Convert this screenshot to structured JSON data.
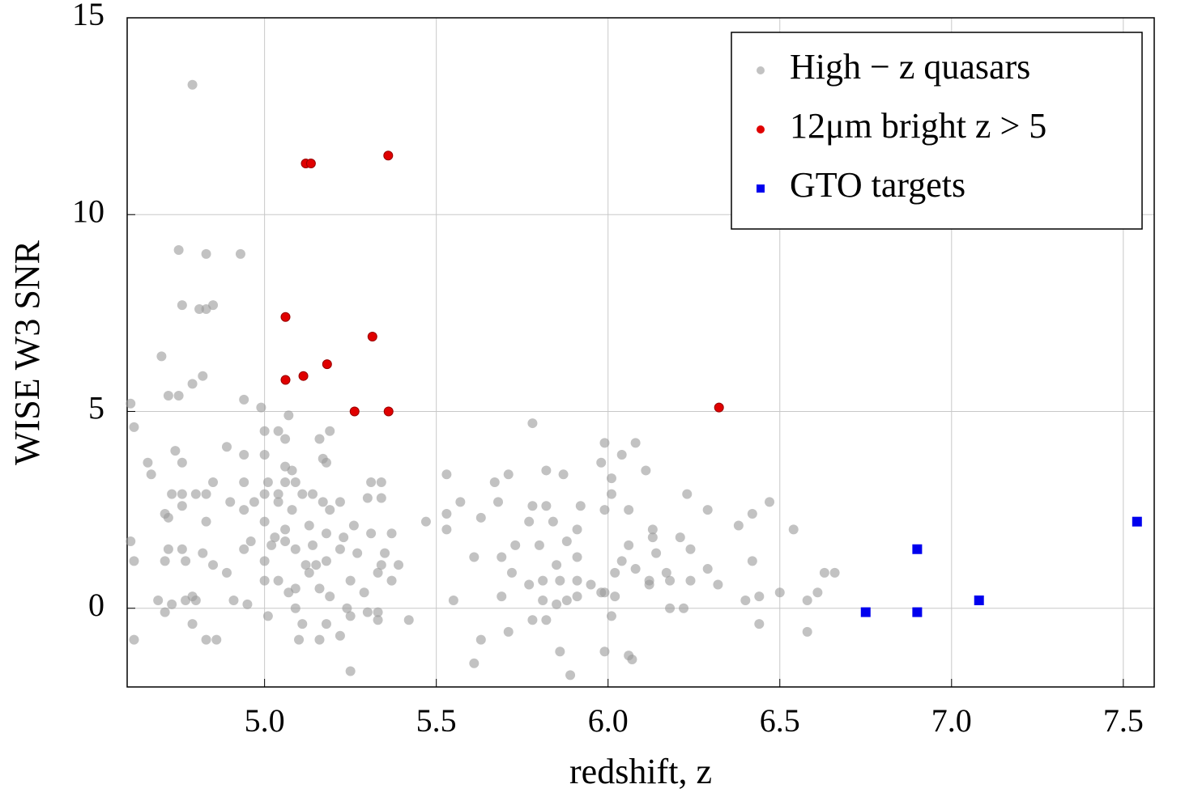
{
  "chart_data": {
    "type": "scatter",
    "xlabel": "redshift,   z",
    "ylabel": "WISE   W3   SNR",
    "xlim": [
      4.6,
      7.59
    ],
    "ylim": [
      -2,
      15
    ],
    "xticks": [
      {
        "value": 5,
        "label": "5.0"
      },
      {
        "value": 5.5,
        "label": "5.5"
      },
      {
        "value": 6,
        "label": "6.0"
      },
      {
        "value": 6.5,
        "label": "6.5"
      },
      {
        "value": 7,
        "label": "7.0"
      },
      {
        "value": 7.5,
        "label": "7.5"
      }
    ],
    "yticks": [
      0,
      5,
      10,
      15
    ],
    "grid": true,
    "legend": "upper right",
    "series": [
      {
        "name": "High − z quasars",
        "color": "#999999",
        "marker": "circle",
        "x": [
          4.79,
          4.75,
          4.83,
          4.93,
          4.76,
          4.85,
          4.81,
          4.83,
          4.7,
          4.82,
          4.79,
          4.72,
          4.75,
          4.94,
          4.61,
          4.99,
          4.62,
          5.07,
          5.0,
          5.04,
          5.19,
          5.16,
          5.06,
          4.89,
          4.74,
          4.94,
          5.0,
          4.76,
          4.66,
          5.17,
          5.18,
          5.06,
          5.08,
          4.67,
          4.85,
          4.94,
          5.01,
          5.06,
          5.09,
          5.31,
          5.34,
          4.73,
          4.76,
          4.8,
          4.83,
          5.0,
          5.04,
          5.11,
          5.14,
          4.9,
          4.97,
          5.04,
          5.17,
          5.22,
          5.3,
          5.34,
          4.76,
          4.94,
          5.08,
          5.19,
          4.71,
          4.72,
          5.0,
          4.83,
          5.13,
          5.26,
          5.06,
          5.18,
          5.31,
          5.37,
          5.23,
          4.61,
          4.96,
          5.03,
          5.06,
          5.14,
          5.02,
          5.09,
          4.72,
          4.76,
          4.94,
          5.22,
          5.27,
          4.82,
          5.35,
          4.62,
          4.71,
          4.77,
          5.0,
          5.18,
          4.85,
          5.12,
          5.15,
          5.39,
          5.34,
          4.89,
          5.13,
          5.33,
          5.0,
          5.04,
          5.25,
          5.37,
          5.09,
          5.16,
          5.07,
          5.29,
          4.79,
          5.19,
          4.69,
          4.77,
          4.91,
          4.8,
          4.95,
          4.73,
          5.09,
          5.24,
          4.71,
          5.33,
          5.01,
          5.25,
          5.3,
          4.79,
          5.11,
          5.18,
          5.33,
          5.42,
          5.22,
          4.62,
          4.83,
          4.86,
          5.1,
          5.16,
          5.25,
          5.53,
          5.71,
          5.82,
          5.87,
          5.67,
          5.57,
          5.53,
          5.63,
          5.68,
          5.78,
          5.82,
          5.92,
          5.77,
          5.84,
          5.91,
          5.53,
          5.47,
          5.61,
          5.69,
          5.73,
          5.8,
          5.88,
          5.91,
          5.85,
          5.72,
          5.69,
          5.77,
          5.81,
          5.86,
          5.91,
          5.95,
          5.98,
          5.81,
          5.85,
          5.88,
          5.91,
          6.01,
          5.78,
          5.82,
          5.55,
          5.71,
          5.63,
          5.86,
          5.61,
          5.89,
          5.99,
          6.06,
          6.07,
          5.78,
          5.99,
          6.08,
          6.04,
          5.98,
          6.11,
          6.01,
          6.01,
          5.99,
          6.06,
          6.13,
          6.13,
          6.06,
          6.14,
          6.04,
          6.02,
          6.08,
          6.12,
          6.17,
          6.18,
          5.99,
          6.02,
          6.12,
          6.18,
          6.22,
          6.23,
          6.21,
          6.24,
          6.29,
          6.29,
          6.32,
          6.24,
          6.38,
          6.42,
          6.47,
          6.42,
          6.54,
          6.44,
          6.4,
          6.5,
          6.44,
          6.61,
          6.63,
          6.66,
          6.58,
          6.58
        ],
        "values": [
          13.3,
          9.1,
          9.0,
          9.0,
          7.7,
          7.7,
          7.6,
          7.6,
          6.4,
          5.9,
          5.7,
          5.4,
          5.4,
          5.3,
          5.2,
          5.1,
          4.6,
          4.9,
          4.5,
          4.5,
          4.5,
          4.3,
          4.3,
          4.1,
          4.0,
          3.9,
          3.9,
          3.7,
          3.7,
          3.8,
          3.7,
          3.6,
          3.5,
          3.4,
          3.2,
          3.2,
          3.2,
          3.2,
          3.2,
          3.2,
          3.2,
          2.9,
          2.9,
          2.9,
          2.9,
          2.9,
          2.9,
          2.9,
          2.9,
          2.7,
          2.7,
          2.7,
          2.7,
          2.7,
          2.8,
          2.8,
          2.6,
          2.5,
          2.5,
          2.5,
          2.4,
          2.3,
          2.2,
          2.2,
          2.1,
          2.1,
          2.0,
          1.9,
          1.9,
          1.9,
          1.8,
          1.7,
          1.7,
          1.8,
          1.7,
          1.6,
          1.6,
          1.5,
          1.5,
          1.5,
          1.5,
          1.5,
          1.4,
          1.4,
          1.4,
          1.2,
          1.2,
          1.2,
          1.2,
          1.2,
          1.1,
          1.1,
          1.1,
          1.1,
          1.1,
          0.9,
          0.9,
          0.9,
          0.7,
          0.7,
          0.7,
          0.7,
          0.5,
          0.5,
          0.4,
          0.4,
          0.3,
          0.3,
          0.2,
          0.2,
          0.2,
          0.2,
          0.1,
          0.1,
          0.0,
          0.0,
          -0.1,
          -0.1,
          -0.2,
          -0.2,
          -0.1,
          -0.4,
          -0.4,
          -0.4,
          -0.3,
          -0.3,
          -0.7,
          -0.8,
          -0.8,
          -0.8,
          -0.8,
          -0.8,
          -1.6,
          3.4,
          3.4,
          3.5,
          3.4,
          3.2,
          2.7,
          2.4,
          2.3,
          2.7,
          2.6,
          2.6,
          2.6,
          2.2,
          2.2,
          2.0,
          2.0,
          2.2,
          1.3,
          1.3,
          1.6,
          1.6,
          1.7,
          1.3,
          1.1,
          0.9,
          0.3,
          0.6,
          0.7,
          0.7,
          0.7,
          0.6,
          0.4,
          0.2,
          0.1,
          0.2,
          0.3,
          -0.2,
          -0.3,
          -0.3,
          0.2,
          -0.6,
          -0.8,
          -1.1,
          -1.4,
          -1.7,
          -1.1,
          -1.2,
          -1.3,
          4.7,
          4.2,
          4.2,
          3.9,
          3.7,
          3.5,
          3.3,
          2.9,
          2.5,
          2.5,
          2.0,
          1.8,
          1.6,
          1.4,
          1.2,
          0.9,
          1.0,
          0.7,
          0.9,
          0.7,
          0.4,
          0.3,
          0.6,
          0.0,
          0.0,
          2.9,
          1.8,
          1.5,
          1.0,
          2.5,
          0.6,
          0.7,
          2.1,
          2.4,
          2.7,
          1.2,
          2.0,
          0.3,
          0.2,
          0.4,
          -0.4,
          0.4,
          0.9,
          0.9,
          0.2,
          -0.6
        ]
      },
      {
        "name": "12μm bright z > 5",
        "color": "#e00000",
        "marker": "circle",
        "x": [
          5.061,
          5.061,
          5.113,
          5.182,
          5.314,
          5.262,
          5.361,
          5.12,
          5.135,
          5.36,
          6.323
        ],
        "values": [
          7.4,
          5.8,
          5.9,
          6.2,
          6.9,
          5.0,
          5.0,
          11.3,
          11.3,
          11.5,
          5.1
        ]
      },
      {
        "name": "GTO targets",
        "color": "#0000ee",
        "marker": "square",
        "x": [
          6.75,
          6.9,
          6.9,
          7.08,
          7.54
        ],
        "values": [
          -0.1,
          1.5,
          -0.1,
          0.2,
          2.2
        ]
      }
    ]
  }
}
